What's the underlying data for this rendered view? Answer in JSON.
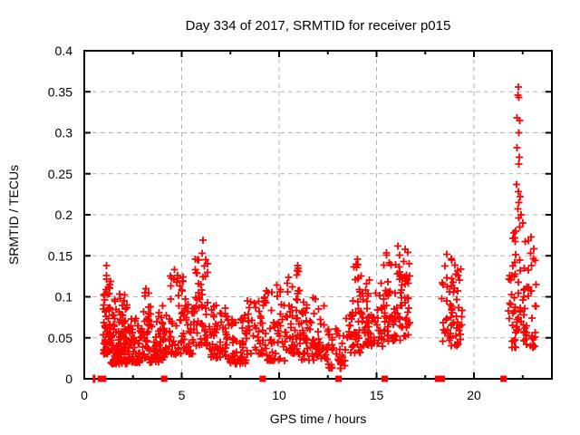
{
  "chart_data": {
    "type": "scatter",
    "title": "Day 334 of 2017, SRMTID for receiver p015",
    "xlabel": "GPS time / hours",
    "ylabel": "SRMTID / TECUs",
    "xlim": [
      0,
      24
    ],
    "ylim": [
      0,
      0.4
    ],
    "xticks": {
      "values": [
        0,
        5,
        10,
        15,
        20
      ],
      "labels": [
        "0",
        "5",
        "10",
        "15",
        "20"
      ]
    },
    "x_minor_ticks": [
      2.5,
      7.5,
      12.5,
      17.5,
      22.5
    ],
    "yticks": {
      "values": [
        0,
        0.05,
        0.1,
        0.15,
        0.2,
        0.25,
        0.3,
        0.35,
        0.4
      ],
      "labels": [
        "0",
        "0.05",
        "0.1",
        "0.15",
        "0.2",
        "0.25",
        "0.3",
        "0.35",
        "0.4"
      ]
    },
    "grid": true,
    "grid_style": "dashed",
    "legend": "none",
    "marker": "plus",
    "marker_color": "#ff0000",
    "grid_color": "#b4b4b4",
    "frame_color": "#000000",
    "series_description": "SRMTID scatter, ~1200 red plus markers between 0.5 h and 23.2 h; dense band 0.02-0.12 TECUs with spikes near 1.2, 6.1, 11.0, 14.0, 16.3 h; isolated columns at 18.3-19.4 h and 21.8-23.2 h, the latter reaching 0.36 TECUs; data gaps 17.1-18.3 h and 19.5-21.7 h",
    "density_clusters": [
      [
        0.98,
        1.35,
        0.03,
        0.132,
        60,
        1.7
      ],
      [
        1.35,
        2.2,
        0.018,
        0.105,
        115,
        1.9
      ],
      [
        2.2,
        2.85,
        0.02,
        0.075,
        50,
        1.6
      ],
      [
        2.85,
        3.35,
        0.025,
        0.115,
        45,
        1.7
      ],
      [
        3.35,
        4.25,
        0.02,
        0.092,
        60,
        1.7
      ],
      [
        4.3,
        5.15,
        0.03,
        0.128,
        55,
        1.7
      ],
      [
        5.15,
        5.65,
        0.03,
        0.1,
        32,
        1.6
      ],
      [
        5.65,
        6.35,
        0.04,
        0.148,
        48,
        1.5
      ],
      [
        6.4,
        7.4,
        0.025,
        0.092,
        58,
        1.7
      ],
      [
        7.4,
        8.35,
        0.018,
        0.078,
        58,
        1.8
      ],
      [
        8.35,
        9.3,
        0.03,
        0.105,
        45,
        1.6
      ],
      [
        9.3,
        10.4,
        0.022,
        0.115,
        55,
        1.7
      ],
      [
        10.4,
        11.15,
        0.03,
        0.135,
        50,
        1.5
      ],
      [
        11.15,
        12.35,
        0.022,
        0.1,
        68,
        1.8
      ],
      [
        12.35,
        13.4,
        0.012,
        0.062,
        45,
        1.5
      ],
      [
        13.45,
        14.35,
        0.03,
        0.14,
        55,
        1.5
      ],
      [
        14.35,
        15.3,
        0.04,
        0.122,
        52,
        1.5
      ],
      [
        15.35,
        16.7,
        0.045,
        0.155,
        95,
        1.3
      ],
      [
        18.35,
        19.4,
        0.04,
        0.148,
        62,
        1.4
      ],
      [
        21.75,
        23.2,
        0.038,
        0.175,
        90,
        1.3
      ]
    ],
    "outlier_points": [
      [
        1.15,
        0.138
      ],
      [
        4.62,
        0.133
      ],
      [
        5.85,
        0.145
      ],
      [
        6.09,
        0.169
      ],
      [
        6.05,
        0.153
      ],
      [
        6.22,
        0.125
      ],
      [
        10.95,
        0.138
      ],
      [
        11.0,
        0.131
      ],
      [
        14.02,
        0.146
      ],
      [
        13.95,
        0.14
      ],
      [
        16.1,
        0.162
      ],
      [
        16.47,
        0.158
      ],
      [
        18.6,
        0.152
      ],
      [
        18.85,
        0.145
      ],
      [
        22.28,
        0.356
      ],
      [
        22.25,
        0.346
      ],
      [
        22.3,
        0.343
      ],
      [
        22.2,
        0.318
      ],
      [
        22.35,
        0.315
      ],
      [
        22.3,
        0.3
      ],
      [
        22.22,
        0.282
      ],
      [
        22.33,
        0.27
      ],
      [
        22.3,
        0.262
      ],
      [
        22.18,
        0.237
      ],
      [
        22.28,
        0.228
      ],
      [
        22.38,
        0.222
      ],
      [
        22.3,
        0.215
      ],
      [
        22.26,
        0.207
      ],
      [
        22.42,
        0.2
      ],
      [
        22.3,
        0.196
      ],
      [
        22.5,
        0.19
      ],
      [
        22.36,
        0.185
      ],
      [
        22.15,
        0.18
      ],
      [
        22.05,
        0.178
      ],
      [
        22.1,
        0.172
      ]
    ],
    "zero_line_markers": {
      "marker": "filled-square",
      "y": 0,
      "bar_x": [
        0.5
      ],
      "square_x": [
        0.85,
        0.97,
        4.1,
        9.16,
        13.05,
        15.42,
        18.15,
        18.35,
        21.52
      ]
    }
  }
}
